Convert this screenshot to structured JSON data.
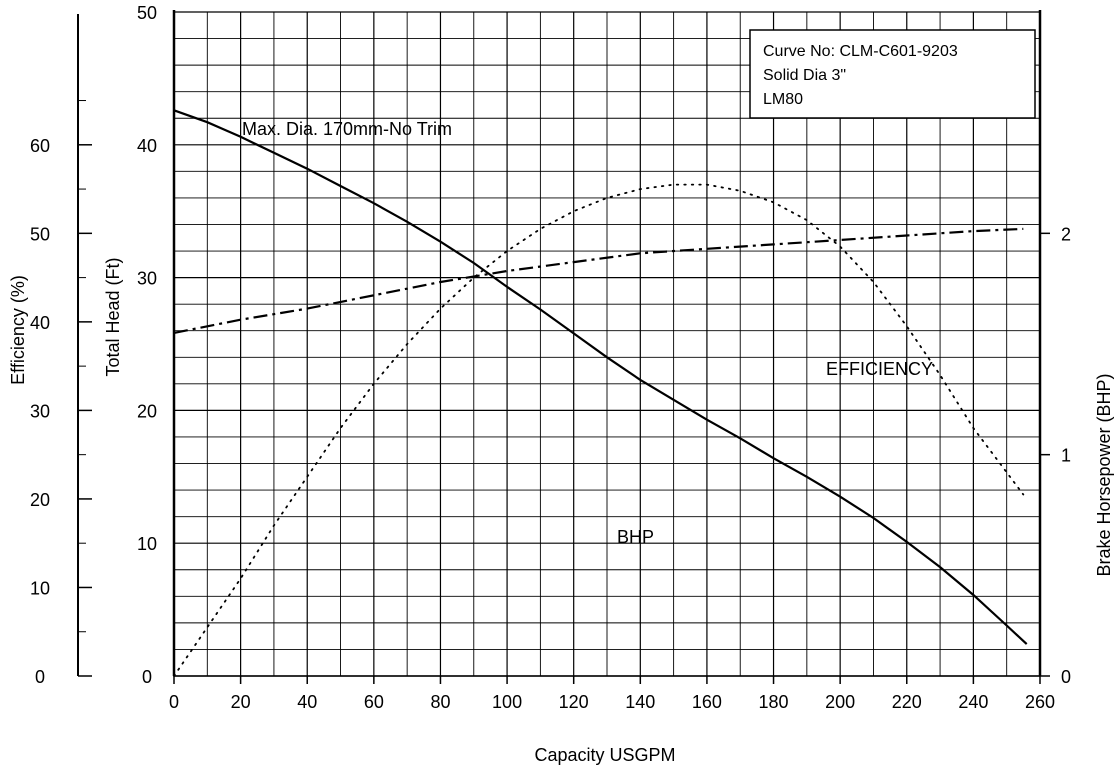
{
  "chart_data": {
    "type": "line",
    "title": "",
    "xlabel": "Capacity USGPM",
    "xlim": [
      0,
      260
    ],
    "x_ticks": [
      "0",
      "20",
      "40",
      "60",
      "80",
      "100",
      "120",
      "140",
      "160",
      "180",
      "200",
      "220",
      "240",
      "260"
    ],
    "y_axes": {
      "head": {
        "label": "Total Head (Ft)",
        "lim": [
          0,
          50
        ],
        "ticks": [
          "0",
          "10",
          "20",
          "30",
          "40",
          "50"
        ]
      },
      "efficiency": {
        "label": "Efficiency (%)",
        "lim": [
          0,
          75
        ],
        "ticks": [
          "0",
          "10",
          "20",
          "30",
          "40",
          "50",
          "60"
        ]
      },
      "bhp": {
        "label": "Brake Horsepower (BHP)",
        "lim": [
          0,
          3
        ],
        "ticks": [
          "0",
          "1",
          "2"
        ]
      }
    },
    "grid": true,
    "info_box": [
      "Curve No: CLM-C601-9203",
      "Solid Dia   3\"",
      "LM80"
    ],
    "annotations": {
      "head": "Max. Dia. 170mm-No Trim",
      "efficiency": "EFFICIENCY",
      "bhp": "BHP"
    },
    "series": [
      {
        "axis": "head",
        "style": "solid",
        "points": [
          [
            0,
            42.6
          ],
          [
            10,
            41.7
          ],
          [
            20,
            40.6
          ],
          [
            30,
            39.4
          ],
          [
            40,
            38.2
          ],
          [
            50,
            36.9
          ],
          [
            60,
            35.6
          ],
          [
            70,
            34.2
          ],
          [
            80,
            32.7
          ],
          [
            90,
            31.1
          ],
          [
            100,
            29.3
          ],
          [
            110,
            27.6
          ],
          [
            120,
            25.8
          ],
          [
            130,
            24.0
          ],
          [
            140,
            22.3
          ],
          [
            150,
            20.8
          ],
          [
            160,
            19.3
          ],
          [
            170,
            17.9
          ],
          [
            180,
            16.4
          ],
          [
            190,
            15.0
          ],
          [
            200,
            13.5
          ],
          [
            210,
            11.9
          ],
          [
            220,
            10.1
          ],
          [
            230,
            8.2
          ],
          [
            240,
            6.1
          ],
          [
            250,
            3.8
          ],
          [
            256,
            2.4
          ]
        ]
      },
      {
        "axis": "efficiency",
        "style": "dotted",
        "points": [
          [
            0,
            0
          ],
          [
            10,
            5.5
          ],
          [
            20,
            11
          ],
          [
            30,
            17
          ],
          [
            40,
            22.5
          ],
          [
            50,
            28
          ],
          [
            60,
            33
          ],
          [
            70,
            37.5
          ],
          [
            80,
            41.5
          ],
          [
            90,
            45
          ],
          [
            100,
            48
          ],
          [
            110,
            50.5
          ],
          [
            120,
            52.5
          ],
          [
            130,
            54
          ],
          [
            140,
            55
          ],
          [
            150,
            55.5
          ],
          [
            160,
            55.5
          ],
          [
            170,
            54.8
          ],
          [
            180,
            53.5
          ],
          [
            190,
            51.5
          ],
          [
            200,
            48.5
          ],
          [
            210,
            44.5
          ],
          [
            220,
            39.5
          ],
          [
            230,
            34
          ],
          [
            240,
            28
          ],
          [
            250,
            23
          ],
          [
            255,
            20.5
          ]
        ]
      },
      {
        "axis": "bhp",
        "style": "dashdot",
        "points": [
          [
            0,
            1.55
          ],
          [
            20,
            1.61
          ],
          [
            40,
            1.66
          ],
          [
            60,
            1.72
          ],
          [
            80,
            1.78
          ],
          [
            100,
            1.83
          ],
          [
            120,
            1.87
          ],
          [
            140,
            1.91
          ],
          [
            160,
            1.93
          ],
          [
            180,
            1.95
          ],
          [
            200,
            1.97
          ],
          [
            220,
            1.99
          ],
          [
            240,
            2.01
          ],
          [
            255,
            2.02
          ]
        ]
      }
    ]
  }
}
